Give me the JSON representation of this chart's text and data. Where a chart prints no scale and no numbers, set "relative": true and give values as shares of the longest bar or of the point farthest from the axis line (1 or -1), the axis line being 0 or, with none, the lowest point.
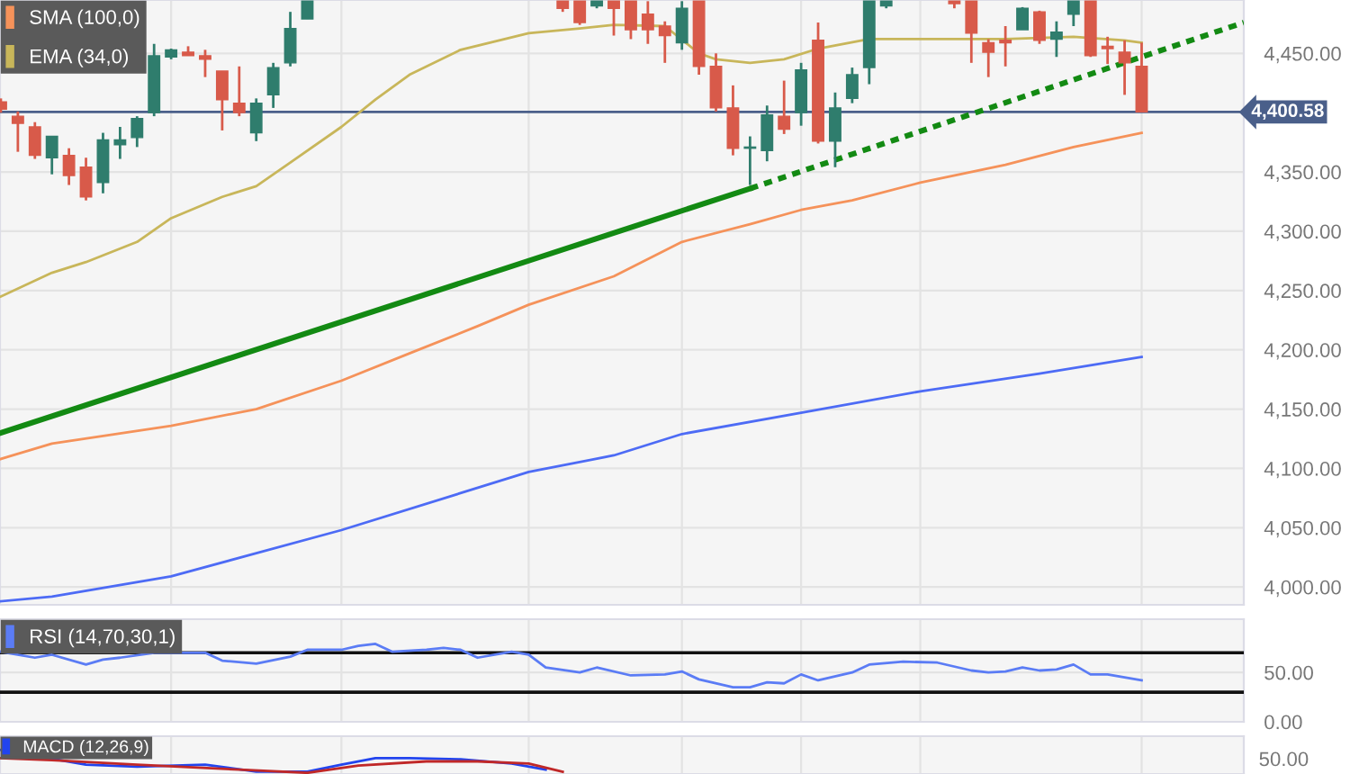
{
  "chart_data": [
    {
      "type": "candlestick",
      "categories": [
        null,
        null,
        null,
        null,
        null,
        null,
        null,
        null,
        null,
        null,
        null,
        null,
        null,
        null,
        null,
        null,
        null,
        null,
        null,
        null,
        null,
        null,
        null,
        null,
        null,
        null,
        null,
        null,
        null,
        null,
        null,
        null,
        null,
        null,
        null,
        null,
        null,
        null,
        null,
        null,
        null,
        null,
        null,
        null,
        null,
        null,
        null,
        null,
        null,
        null,
        null,
        null,
        null,
        null,
        null,
        null,
        null,
        null,
        null,
        null,
        null,
        null,
        null,
        null,
        null,
        null,
        null,
        null,
        null,
        null,
        null,
        null,
        null,
        null
      ],
      "ohlc": [
        [
          4409,
          4412,
          4400,
          4403
        ],
        [
          4397,
          4401,
          4367,
          4391
        ],
        [
          4388,
          4392,
          4361,
          4364
        ],
        [
          4362,
          4380,
          4348,
          4380
        ],
        [
          4364,
          4370,
          4339,
          4347
        ],
        [
          4354,
          4362,
          4326,
          4329
        ],
        [
          4341,
          4383,
          4332,
          4377
        ],
        [
          4373,
          4388,
          4361,
          4377
        ],
        [
          4379,
          4397,
          4371,
          4395
        ],
        [
          4400,
          4458,
          4397,
          4448
        ],
        [
          4447,
          4454,
          4445,
          4453
        ],
        [
          4451,
          4456,
          4448,
          4448
        ],
        [
          4448,
          4453,
          4430,
          4445
        ],
        [
          4435,
          4435,
          4385,
          4411
        ],
        [
          4408,
          4439,
          4397,
          4400
        ],
        [
          4383,
          4412,
          4376,
          4408
        ],
        [
          4415,
          4442,
          4404,
          4438
        ],
        [
          4442,
          4485,
          4439,
          4471
        ],
        [
          4479,
          4494,
          4479,
          4494
        ],
        null,
        null,
        null,
        null,
        null,
        null,
        null,
        null,
        null,
        null,
        null,
        null,
        null,
        null,
        [
          4494,
          4494,
          4485,
          4488
        ],
        [
          4494,
          4494,
          4474,
          4476
        ],
        [
          4490,
          4494,
          4488,
          4494
        ],
        [
          4494,
          4494,
          4465,
          4488
        ],
        [
          4494,
          4494,
          4462,
          4470
        ],
        [
          4483,
          4494,
          4458,
          4470
        ],
        [
          4473,
          4477,
          4442,
          4465
        ],
        [
          4459,
          4494,
          4453,
          4488
        ],
        [
          4494,
          4494,
          4432,
          4439
        ],
        [
          4439,
          4450,
          4401,
          4404
        ],
        [
          4404,
          4423,
          4364,
          4370
        ],
        [
          4370,
          4380,
          4339,
          4371
        ],
        [
          4368,
          4406,
          4359,
          4398
        ],
        [
          4397,
          4427,
          4382,
          4386
        ],
        [
          4400,
          4442,
          4389,
          4436
        ],
        [
          4461,
          4476,
          4374,
          4376
        ],
        [
          4376,
          4417,
          4354,
          4404
        ],
        [
          4412,
          4438,
          4408,
          4432
        ],
        [
          4438,
          4494,
          4424,
          4494
        ],
        [
          4490,
          4494,
          4488,
          4494
        ],
        null,
        null,
        null,
        [
          4494,
          4494,
          4488,
          4492
        ],
        [
          4494,
          4494,
          4442,
          4467
        ],
        [
          4459,
          4462,
          4430,
          4451
        ],
        [
          4461,
          4473,
          4439,
          4459
        ],
        [
          4470,
          4489,
          4470,
          4488
        ],
        [
          4485,
          4486,
          4458,
          4461
        ],
        [
          4462,
          4477,
          4447,
          4468
        ],
        [
          4483,
          4494,
          4473,
          4494
        ],
        [
          4494,
          4494,
          4447,
          4448
        ],
        [
          4456,
          4464,
          4441,
          4454
        ],
        [
          4451,
          4461,
          4415,
          4442
        ],
        [
          4439,
          4459,
          4400.58,
          4400.58
        ],
        null,
        null,
        null,
        null,
        null,
        null
      ],
      "series": [
        {
          "type": "line",
          "name": "SMA (100,0)",
          "color": "#f5925a",
          "values": [
            4108,
            null,
            null,
            4121,
            null,
            null,
            null,
            null,
            null,
            null,
            4136,
            null,
            null,
            null,
            null,
            4150,
            null,
            null,
            null,
            null,
            4174,
            null,
            null,
            null,
            4197,
            null,
            null,
            null,
            4220,
            null,
            null,
            4238,
            null,
            null,
            null,
            null,
            4262,
            null,
            null,
            null,
            4291,
            null,
            null,
            null,
            4306,
            null,
            null,
            4318,
            null,
            null,
            4326,
            null,
            null,
            null,
            4341,
            null,
            null,
            null,
            null,
            4356,
            null,
            null,
            null,
            4371,
            null,
            null,
            null,
            4383,
            null,
            null,
            null,
            null,
            null,
            null
          ]
        },
        {
          "type": "line",
          "name": "EMA (34,0)",
          "color": "#c8b65a",
          "values": [
            4245,
            null,
            null,
            4265,
            null,
            4274,
            null,
            null,
            4291,
            null,
            4311,
            null,
            null,
            4329,
            null,
            4338,
            null,
            4358,
            null,
            null,
            4388,
            null,
            4411,
            null,
            4432,
            null,
            null,
            4453,
            null,
            null,
            null,
            4467,
            null,
            null,
            4471,
            null,
            4474,
            null,
            null,
            4473,
            null,
            4450,
            4445,
            null,
            4442,
            null,
            4445,
            null,
            4454,
            null,
            null,
            4462,
            null,
            null,
            null,
            null,
            4462,
            null,
            null,
            4462,
            null,
            null,
            null,
            4464,
            null,
            null,
            4461,
            4459,
            null,
            null,
            null,
            null,
            null,
            null
          ]
        },
        {
          "type": "line",
          "color": "#4d6bf5",
          "values": [
            3988,
            null,
            null,
            3992,
            null,
            null,
            null,
            null,
            null,
            null,
            4009,
            null,
            null,
            null,
            null,
            null,
            null,
            null,
            null,
            null,
            4048,
            null,
            null,
            null,
            null,
            null,
            null,
            null,
            null,
            null,
            null,
            4097,
            null,
            null,
            null,
            null,
            4111,
            null,
            null,
            null,
            4129,
            null,
            null,
            null,
            null,
            null,
            null,
            4147,
            null,
            null,
            null,
            null,
            null,
            null,
            4165,
            null,
            null,
            null,
            null,
            null,
            null,
            4180,
            null,
            null,
            null,
            null,
            null,
            4194,
            null,
            null,
            null,
            null,
            null,
            null
          ]
        },
        {
          "type": "line",
          "color": "#138a13",
          "line_style": "solid",
          "values": [
            4130,
            null,
            null,
            null,
            null,
            null,
            null,
            null,
            null,
            null,
            null,
            null,
            null,
            null,
            null,
            null,
            null,
            null,
            null,
            null,
            null,
            null,
            null,
            null,
            null,
            null,
            null,
            null,
            null,
            null,
            null,
            null,
            null,
            null,
            null,
            null,
            null,
            null,
            null,
            null,
            null,
            null,
            null,
            null,
            4336,
            null,
            null,
            null,
            null,
            null,
            null,
            null,
            null,
            null,
            null,
            null,
            null,
            null,
            null,
            null,
            null,
            null,
            null,
            null,
            null,
            null,
            null,
            null,
            null,
            null,
            null,
            null,
            null,
            null
          ]
        },
        {
          "type": "line",
          "color": "#138a13",
          "line_style": "dotted",
          "values": [
            null,
            null,
            null,
            null,
            null,
            null,
            null,
            null,
            null,
            null,
            null,
            null,
            null,
            null,
            null,
            null,
            null,
            null,
            null,
            null,
            null,
            null,
            null,
            null,
            null,
            null,
            null,
            null,
            null,
            null,
            null,
            null,
            null,
            null,
            null,
            null,
            null,
            null,
            null,
            null,
            null,
            null,
            null,
            null,
            4336,
            null,
            null,
            null,
            null,
            null,
            null,
            null,
            null,
            null,
            null,
            null,
            null,
            null,
            null,
            null,
            null,
            null,
            null,
            null,
            null,
            null,
            null,
            null,
            null,
            null,
            null,
            null,
            null,
            4476
          ]
        }
      ],
      "ref_lines": [
        {
          "axis": "y",
          "value": 4400.58,
          "label": "4,400.58",
          "color": "#4a5f8a"
        }
      ],
      "ylim": [
        3985,
        4495
      ],
      "yticks": [
        {
          "value": 4000,
          "label": "4,000.00"
        },
        {
          "value": 4050,
          "label": "4,050.00"
        },
        {
          "value": 4100,
          "label": "4,100.00"
        },
        {
          "value": 4150,
          "label": "4,150.00"
        },
        {
          "value": 4200,
          "label": "4,200.00"
        },
        {
          "value": 4250,
          "label": "4,250.00"
        },
        {
          "value": 4300,
          "label": "4,300.00"
        },
        {
          "value": 4350,
          "label": "4,350.00"
        },
        {
          "value": 4450,
          "label": "4,450.00"
        }
      ],
      "grid": true,
      "legend": "top left"
    },
    {
      "type": "line",
      "categories": [
        null,
        null,
        null,
        null,
        null,
        null,
        null,
        null,
        null,
        null,
        null,
        null,
        null,
        null,
        null,
        null,
        null,
        null,
        null,
        null,
        null,
        null,
        null,
        null,
        null,
        null,
        null,
        null,
        null,
        null,
        null,
        null,
        null,
        null,
        null,
        null,
        null,
        null,
        null,
        null,
        null,
        null,
        null,
        null,
        null,
        null,
        null,
        null,
        null,
        null,
        null,
        null,
        null,
        null,
        null,
        null,
        null,
        null,
        null,
        null,
        null,
        null,
        null,
        null,
        null,
        null,
        null,
        null,
        null,
        null,
        null,
        null,
        null,
        null
      ],
      "series": [
        {
          "name": "RSI (14,70,30,1)",
          "color": "#5b7cf5",
          "values": [
            71,
            null,
            65,
            68,
            null,
            58,
            63,
            65,
            null,
            70,
            null,
            null,
            70,
            62,
            null,
            59,
            null,
            66,
            73,
            null,
            73,
            77,
            79,
            71,
            null,
            73,
            75,
            73,
            65,
            null,
            71,
            68,
            55,
            null,
            50,
            55,
            null,
            47,
            null,
            48,
            51,
            43,
            null,
            35,
            35,
            40,
            39,
            48,
            42,
            null,
            50,
            58,
            null,
            61,
            null,
            60,
            null,
            52,
            50,
            51,
            55,
            52,
            53,
            58,
            48,
            48,
            null,
            42,
            null,
            null,
            null,
            null,
            null,
            null
          ]
        }
      ],
      "ref_lines": [
        {
          "axis": "y",
          "value": 70,
          "color": "#111111"
        },
        {
          "axis": "y",
          "value": 30,
          "color": "#111111"
        }
      ],
      "ylim": [
        0,
        104
      ],
      "yticks": [
        {
          "value": 0,
          "label": "0.00"
        },
        {
          "value": 50,
          "label": "50.00"
        }
      ],
      "grid": true,
      "legend": "top left"
    },
    {
      "type": "line",
      "relative": true,
      "categories": [
        null,
        null,
        null,
        null,
        null,
        null,
        null,
        null,
        null,
        null,
        null,
        null,
        null,
        null,
        null,
        null,
        null,
        null,
        null,
        null,
        null,
        null,
        null,
        null,
        null,
        null,
        null,
        null,
        null,
        null,
        null,
        null,
        null,
        null,
        null,
        null,
        null,
        null,
        null,
        null,
        null,
        null,
        null,
        null,
        null,
        null,
        null,
        null,
        null,
        null,
        null,
        null,
        null,
        null,
        null,
        null,
        null,
        null,
        null,
        null,
        null,
        null,
        null,
        null,
        null,
        null,
        null,
        null,
        null,
        null,
        null,
        null,
        null,
        null
      ],
      "series": [
        {
          "name": "MACD (12,26,9)",
          "color": "#2244ee",
          "values": [
            1,
            null,
            null,
            null,
            null,
            0.36,
            null,
            null,
            0.27,
            null,
            null,
            null,
            0.36,
            null,
            null,
            0.05,
            null,
            null,
            0.05,
            null,
            0.36,
            null,
            0.64,
            null,
            0.64,
            null,
            null,
            0.59,
            null,
            null,
            0.41,
            null,
            0.14,
            null,
            null,
            null,
            null,
            null,
            null,
            null,
            null,
            null,
            null,
            null,
            null,
            null,
            null,
            null,
            null,
            null,
            null,
            null,
            null,
            null,
            null,
            null,
            null,
            null,
            null,
            null,
            null,
            null,
            null,
            null,
            null,
            null,
            null,
            null,
            null,
            null,
            null,
            null,
            null,
            null
          ]
        },
        {
          "color": "#c02828",
          "values": [
            0.64,
            null,
            null,
            0.55,
            null,
            null,
            null,
            null,
            0.36,
            null,
            null,
            null,
            null,
            null,
            0.14,
            null,
            null,
            null,
            0,
            null,
            null,
            0.32,
            null,
            null,
            null,
            0.5,
            null,
            null,
            0.5,
            null,
            null,
            0.41,
            null,
            0.05,
            null,
            null,
            null,
            null,
            null,
            null,
            null,
            null,
            null,
            null,
            null,
            null,
            null,
            null,
            null,
            null,
            null,
            null,
            null,
            null,
            null,
            null,
            null,
            null,
            null,
            null,
            null,
            null,
            null,
            null,
            null,
            null,
            null,
            null,
            null,
            null,
            null,
            null,
            null,
            null
          ]
        }
      ],
      "annotations": [
        "50.00"
      ],
      "grid": true,
      "legend": "top left"
    }
  ]
}
